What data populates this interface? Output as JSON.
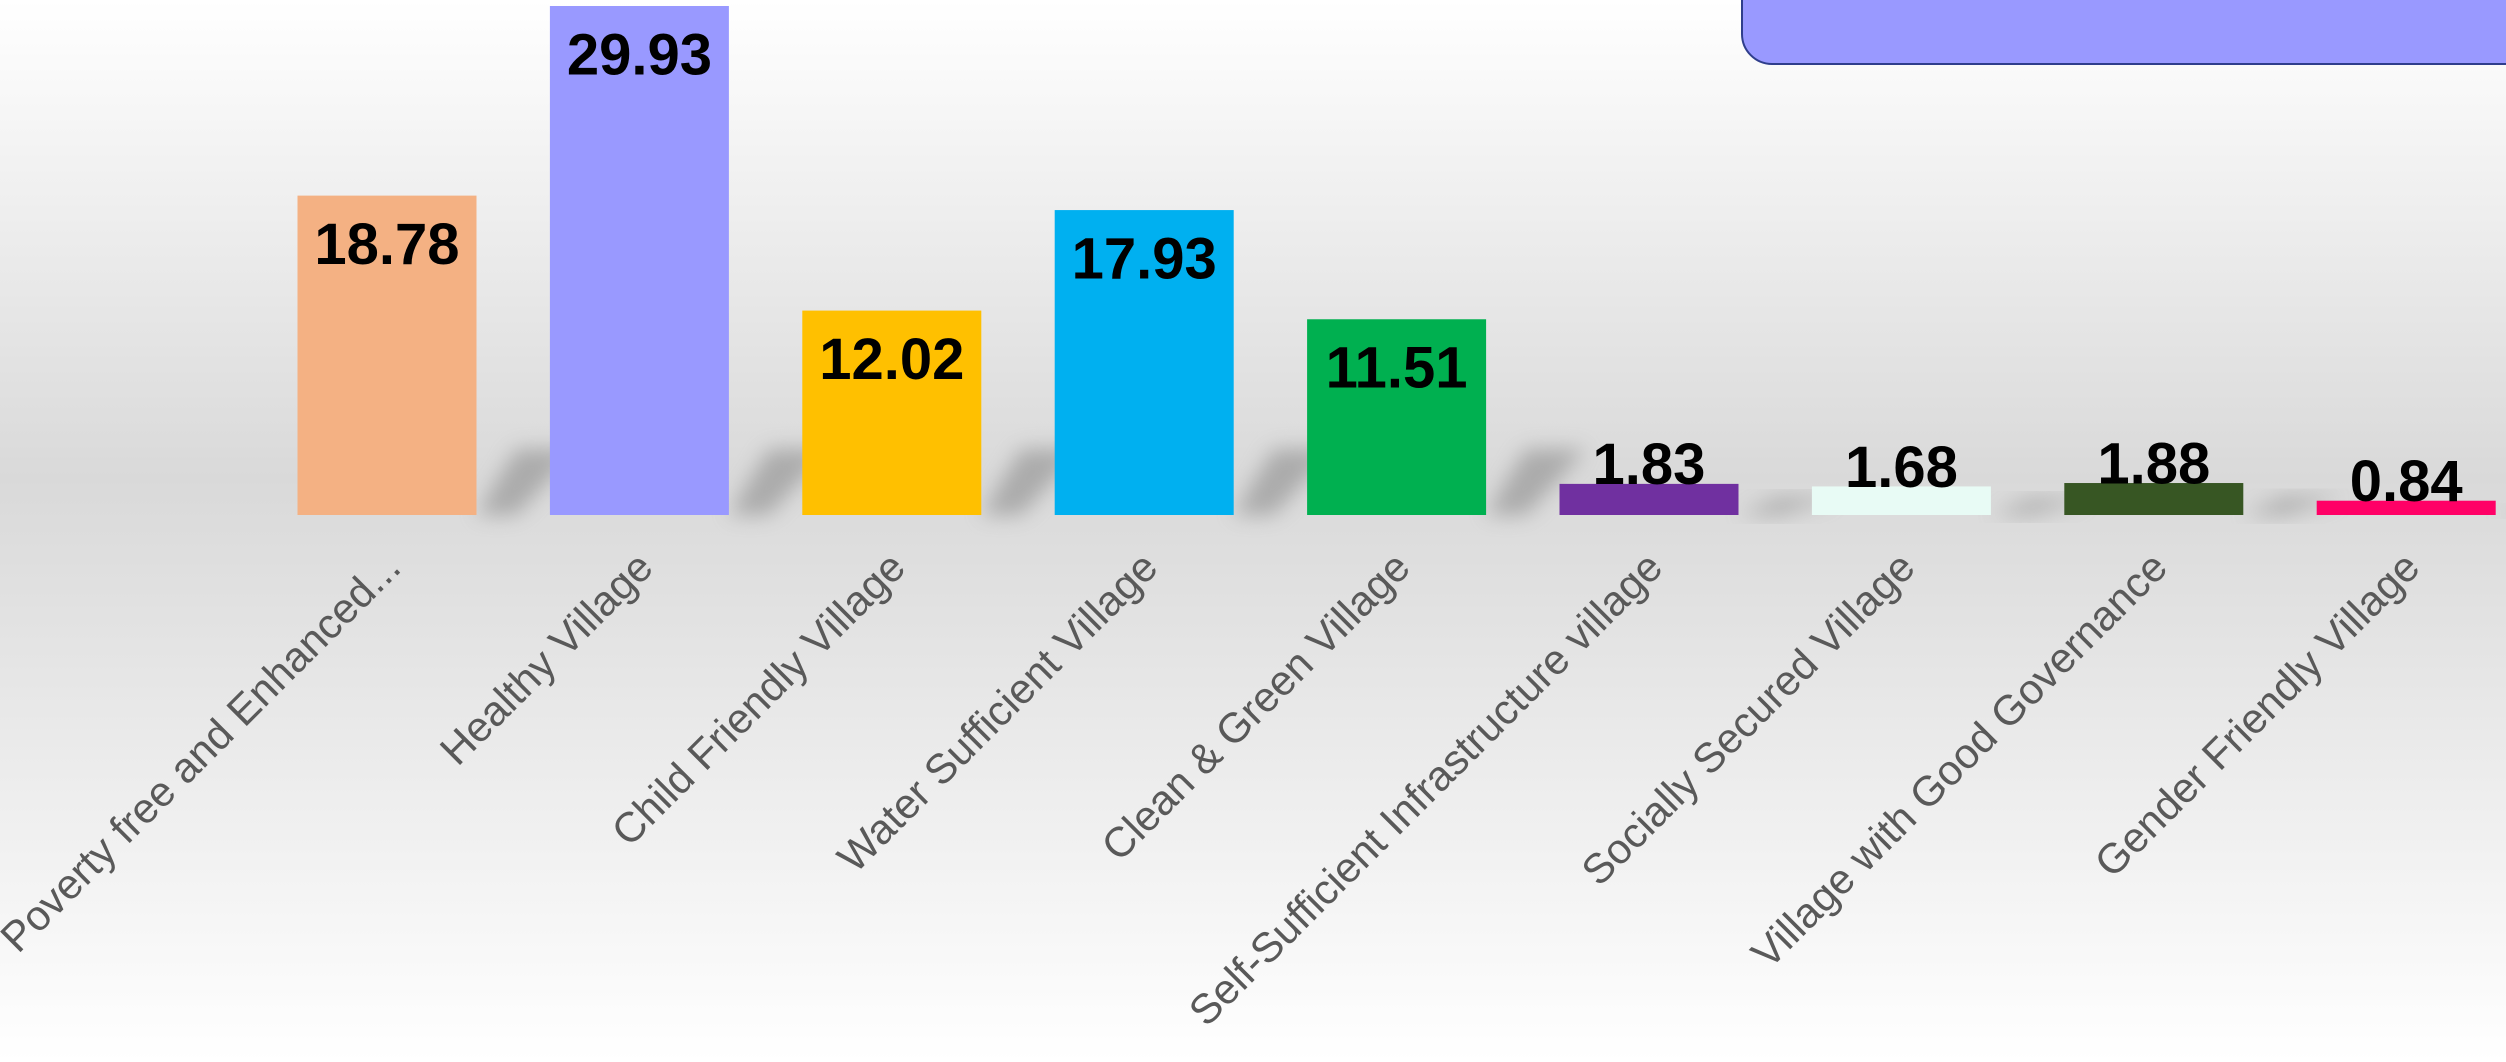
{
  "chart_data": {
    "type": "bar",
    "categories": [
      "Poverty free and Enhanced...",
      "Healthy Village",
      "Child Friendly Village",
      "Water Sufficient Village",
      "Clean & Green Village",
      "Self-Sufficient Infrastructure village",
      "Socially Secured Village",
      "Village with Good Governance",
      "Gender Friendly Village"
    ],
    "values": [
      18.78,
      29.93,
      12.02,
      17.93,
      11.51,
      1.83,
      1.68,
      1.88,
      0.84
    ],
    "colors": [
      "#F4B183",
      "#9999FF",
      "#FFC000",
      "#00B0F0",
      "#00B050",
      "#7030A0",
      "#E8FBF5",
      "#375623",
      "#FF0066"
    ]
  }
}
